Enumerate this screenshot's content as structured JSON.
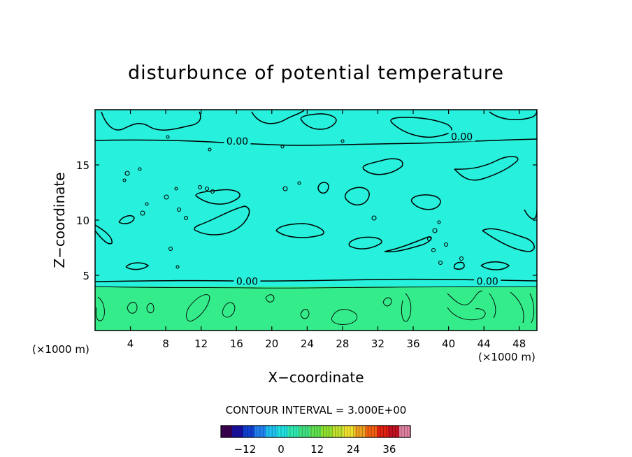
{
  "chart_data": {
    "type": "heatmap",
    "title": "disturbunce of potential temperature",
    "xlabel": "X−coordinate",
    "ylabel": "Z−coordinate",
    "x_unit_left": "(×1000 m)",
    "x_unit_right": "(×1000 m)",
    "xlim": [
      0,
      50
    ],
    "ylim": [
      0,
      20
    ],
    "x_ticks": [
      4,
      8,
      12,
      16,
      20,
      24,
      28,
      32,
      36,
      40,
      44,
      48
    ],
    "y_ticks": [
      5,
      10,
      15
    ],
    "contour_interval_label": "CONTOUR INTERVAL = 3.000E+00",
    "contour_labels": [
      {
        "text": "0.00",
        "x": 16.1,
        "y": 17.1
      },
      {
        "text": "0.00",
        "x": 41.5,
        "y": 17.5
      },
      {
        "text": "0.00",
        "x": 17.2,
        "y": 4.4
      },
      {
        "text": "0.00",
        "x": 44.4,
        "y": 4.4
      }
    ],
    "colorbar": {
      "range": [
        -20,
        43
      ],
      "ticks": [
        -12,
        0,
        12,
        24,
        36
      ],
      "colors": [
        "#3a0050",
        "#1a10a0",
        "#1040d0",
        "#2080f0",
        "#20c0f0",
        "#20e0e0",
        "#30e8b0",
        "#40e080",
        "#60e050",
        "#90e030",
        "#c0e030",
        "#f0e030",
        "#f0a020",
        "#f06010",
        "#e02010",
        "#c01020",
        "#e080a0"
      ]
    },
    "field_colors": {
      "upper": "#27f0dc",
      "lower": "#34ec8a"
    }
  }
}
